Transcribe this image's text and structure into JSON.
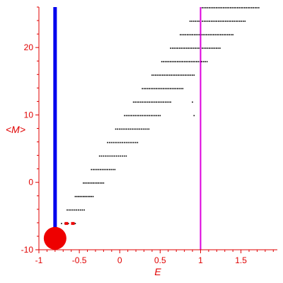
{
  "chart_data": {
    "type": "scatter",
    "title": "",
    "xlabel": "E",
    "ylabel": "<M>",
    "xlim": [
      -1,
      1.95
    ],
    "ylim": [
      -10,
      26
    ],
    "x_ticks": [
      -1,
      -0.5,
      0,
      0.5,
      1,
      1.5
    ],
    "x_tick_labels": [
      "-1",
      "-0.5",
      "0",
      "0.5",
      "1",
      "1.5"
    ],
    "y_ticks": [
      -10,
      0,
      10,
      20
    ],
    "y_tick_labels": [
      "-10",
      "0",
      "10",
      "20"
    ],
    "colors": {
      "axes": "#e00000",
      "dots": "#000000",
      "blue_line": "#0000ee",
      "magenta_line": "#dd00dd",
      "big_marker": "#ee0000"
    },
    "vertical_lines": [
      {
        "x": -0.8,
        "color": "#0000ee",
        "width": "thick"
      },
      {
        "x": 1.0,
        "color": "#dd00dd",
        "width": "thin"
      }
    ],
    "big_marker": {
      "x": -0.8,
      "y": -8.3,
      "color": "#ee0000"
    },
    "small_markers": [
      {
        "x": -0.66,
        "y": -6.1
      },
      {
        "x": -0.58,
        "y": -6.1
      }
    ],
    "levels": [
      {
        "y": -6.1,
        "x_start": -0.72,
        "x_end": -0.55,
        "count": 5
      },
      {
        "y": -4.1,
        "x_start": -0.65,
        "x_end": -0.44,
        "count": 10
      },
      {
        "y": -2.1,
        "x_start": -0.55,
        "x_end": -0.33,
        "count": 12
      },
      {
        "y": -0.1,
        "x_start": -0.45,
        "x_end": -0.2,
        "count": 13
      },
      {
        "y": 1.9,
        "x_start": -0.35,
        "x_end": -0.06,
        "count": 14
      },
      {
        "y": 3.9,
        "x_start": -0.25,
        "x_end": 0.08,
        "count": 15
      },
      {
        "y": 5.9,
        "x_start": -0.15,
        "x_end": 0.22,
        "count": 17
      },
      {
        "y": 7.9,
        "x_start": -0.05,
        "x_end": 0.36,
        "count": 19
      },
      {
        "y": 9.9,
        "x_start": 0.06,
        "x_end": 0.5,
        "count": 21
      },
      {
        "y": 11.9,
        "x_start": 0.17,
        "x_end": 0.63,
        "count": 22
      },
      {
        "y": 13.9,
        "x_start": 0.28,
        "x_end": 0.78,
        "count": 24
      },
      {
        "y": 15.9,
        "x_start": 0.4,
        "x_end": 0.92,
        "count": 25
      },
      {
        "y": 17.9,
        "x_start": 0.52,
        "x_end": 1.08,
        "count": 27
      },
      {
        "y": 19.9,
        "x_start": 0.63,
        "x_end": 1.24,
        "count": 29
      },
      {
        "y": 21.9,
        "x_start": 0.75,
        "x_end": 1.4,
        "count": 31
      },
      {
        "y": 23.9,
        "x_start": 0.87,
        "x_end": 1.55,
        "count": 32
      },
      {
        "y": 25.9,
        "x_start": 1.0,
        "x_end": 1.72,
        "count": 34
      }
    ],
    "gaps": [
      {
        "y": 9.9,
        "x_start": 0.92,
        "x_end": 1.95,
        "count": 2
      },
      {
        "y": 11.9,
        "x_start": 0.9,
        "x_end": 1.95,
        "count": 2
      }
    ]
  }
}
